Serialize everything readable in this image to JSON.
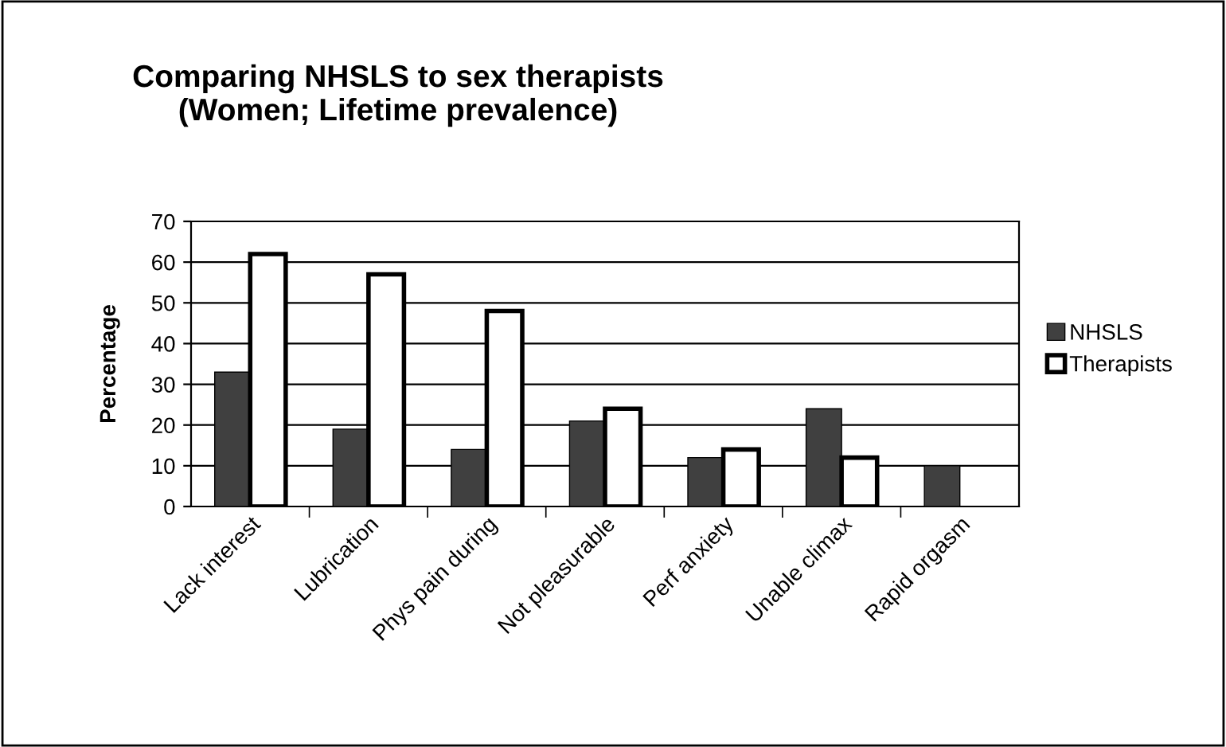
{
  "chart_data": {
    "type": "bar",
    "title": "Comparing NHSLS to sex therapists\n(Women; Lifetime prevalence)",
    "ylabel": "Percentage",
    "categories": [
      "Lack interest",
      "Lubrication",
      "Phys pain during",
      "Not pleasurable",
      "Perf anxiety",
      "Unable climax",
      "Rapid orgasm"
    ],
    "series": [
      {
        "name": "NHSLS",
        "color": "#404040",
        "values": [
          33,
          19,
          14,
          21,
          12,
          24,
          10
        ]
      },
      {
        "name": "Therapists",
        "color": "#ffffff",
        "values": [
          62,
          57,
          48,
          24,
          14,
          12,
          null
        ]
      }
    ],
    "ylim": [
      0,
      70
    ],
    "yticks": [
      0,
      10,
      20,
      30,
      40,
      50,
      60,
      70
    ],
    "grid": "y",
    "legend": "right"
  }
}
